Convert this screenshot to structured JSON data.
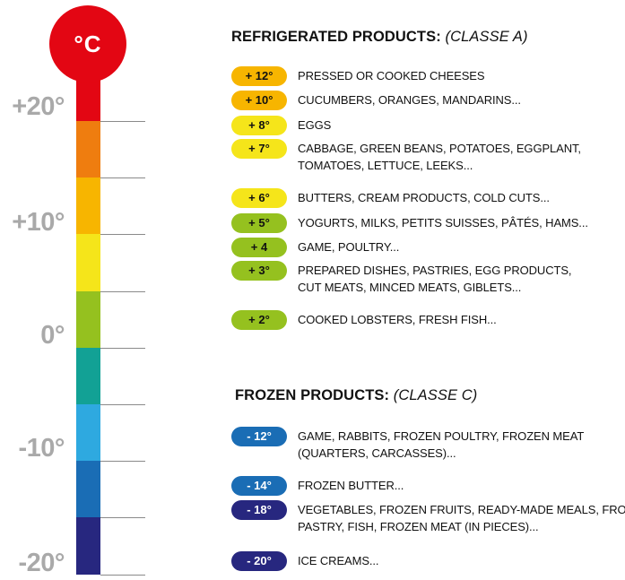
{
  "thermometer": {
    "unit_label": "°C",
    "scale_labels": [
      "+20°",
      "+10°",
      "0°",
      "-10°",
      "-20°"
    ],
    "band_colors": [
      "#ef7d0f",
      "#f7b500",
      "#f5e51a",
      "#95c11f",
      "#12a195",
      "#2ea9e0",
      "#1a6db5",
      "#27277f"
    ],
    "bulb_color": "#e30613"
  },
  "refrigerated": {
    "title": "REFRIGERATED PRODUCTS:",
    "subtitle": "(CLASSE A)",
    "items": [
      {
        "temp": "+ 12°",
        "color": "#f7b500",
        "desc_lines": [
          "PRESSED OR COOKED CHEESES"
        ]
      },
      {
        "temp": "+ 10°",
        "color": "#f7b500",
        "desc_lines": [
          "CUCUMBERS, ORANGES, MANDARINS..."
        ]
      },
      {
        "temp": "+ 8°",
        "color": "#f5e51a",
        "desc_lines": [
          "EGGS"
        ]
      },
      {
        "temp": "+ 7°",
        "color": "#f5e51a",
        "desc_lines": [
          "CABBAGE, GREEN BEANS, POTATOES, EGGPLANT,",
          "TOMATOES, LETTUCE, LEEKS..."
        ]
      },
      {
        "temp": "+ 6°",
        "color": "#f5e51a",
        "desc_lines": [
          "BUTTERS, CREAM PRODUCTS, COLD CUTS..."
        ]
      },
      {
        "temp": "+ 5°",
        "color": "#95c11f",
        "desc_lines": [
          "YOGURTS, MILKS, PETITS SUISSES, PÂTÉS, HAMS..."
        ]
      },
      {
        "temp": "+ 4",
        "color": "#95c11f",
        "desc_lines": [
          "GAME, POULTRY..."
        ]
      },
      {
        "temp": "+ 3°",
        "color": "#95c11f",
        "desc_lines": [
          "PREPARED DISHES, PASTRIES, EGG PRODUCTS,",
          "CUT MEATS, MINCED MEATS, GIBLETS..."
        ]
      },
      {
        "temp": "+ 2°",
        "color": "#95c11f",
        "desc_lines": [
          "COOKED LOBSTERS, FRESH FISH..."
        ]
      }
    ]
  },
  "frozen": {
    "title": "FROZEN PRODUCTS:",
    "subtitle": "(CLASSE C)",
    "items": [
      {
        "temp": "- 12°",
        "color": "#1a6db5",
        "desc_lines": [
          "GAME, RABBITS, FROZEN POULTRY, FROZEN MEAT",
          "(QUARTERS, CARCASSES)..."
        ]
      },
      {
        "temp": "- 14°",
        "color": "#1a6db5",
        "desc_lines": [
          "FROZEN BUTTER..."
        ]
      },
      {
        "temp": "- 18°",
        "color": "#27277f",
        "desc_lines": [
          "VEGETABLES, FROZEN FRUITS, READY-MADE MEALS, FROZEN",
          "PASTRY, FISH, FROZEN MEAT (IN PIECES)..."
        ]
      },
      {
        "temp": "- 20°",
        "color": "#27277f",
        "desc_lines": [
          "ICE CREAMS..."
        ]
      }
    ]
  }
}
